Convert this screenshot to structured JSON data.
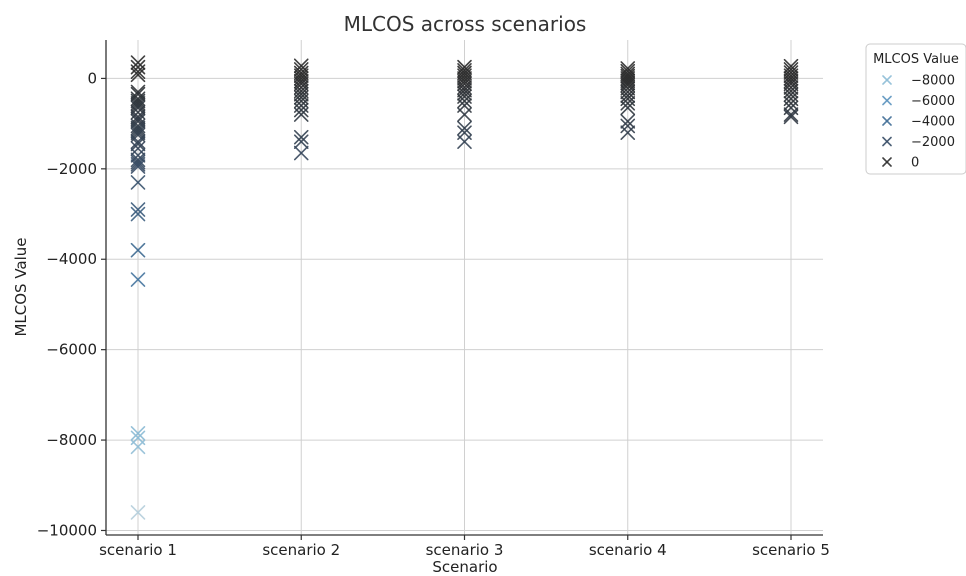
{
  "chart_data": {
    "type": "scatter",
    "title": "MLCOS across scenarios",
    "xlabel": "Scenario",
    "ylabel": "MLCOS Value",
    "categories": [
      "scenario 1",
      "scenario 2",
      "scenario 3",
      "scenario 4",
      "scenario 5"
    ],
    "ylim": [
      -10100,
      850
    ],
    "yticks": [
      0,
      -2000,
      -4000,
      -6000,
      -8000,
      -10000
    ],
    "yticklabels": [
      "0",
      "−2000",
      "−4000",
      "−6000",
      "−8000",
      "−10000"
    ],
    "grid": true,
    "marker": "x",
    "legend": {
      "title": "MLCOS Value",
      "placement": "outside-right-top",
      "entries": [
        {
          "label": "−8000",
          "value": -8000,
          "color": "#8dbcd6"
        },
        {
          "label": "−6000",
          "value": -6000,
          "color": "#5d95bf"
        },
        {
          "label": "−4000",
          "value": -4000,
          "color": "#3f6d96"
        },
        {
          "label": "−2000",
          "value": -2000,
          "color": "#394e67"
        },
        {
          "label": "0",
          "value": 0,
          "color": "#2c2c2c"
        }
      ]
    },
    "series": [
      {
        "category": "scenario 1",
        "values": [
          350,
          250,
          150,
          80,
          -300,
          -350,
          -450,
          -500,
          -550,
          -600,
          -650,
          -750,
          -850,
          -900,
          -950,
          -1050,
          -1100,
          -1150,
          -1200,
          -1250,
          -1400,
          -1450,
          -1550,
          -1700,
          -1800,
          -1850,
          -1900,
          -1950,
          -2300,
          -2900,
          -3000,
          -3800,
          -4450,
          -7850,
          -7950,
          -8150,
          -9600
        ]
      },
      {
        "category": "scenario 2",
        "values": [
          280,
          200,
          120,
          60,
          0,
          -60,
          -120,
          -200,
          -280,
          -350,
          -420,
          -500,
          -600,
          -700,
          -800,
          -1300,
          -1400,
          -1650
        ]
      },
      {
        "category": "scenario 3",
        "values": [
          250,
          180,
          120,
          60,
          0,
          -60,
          -120,
          -200,
          -260,
          -330,
          -400,
          -500,
          -600,
          -800,
          -1100,
          -1200,
          -1400
        ]
      },
      {
        "category": "scenario 4",
        "values": [
          220,
          160,
          100,
          50,
          0,
          -50,
          -100,
          -150,
          -220,
          -300,
          -380,
          -450,
          -550,
          -650,
          -950,
          -1050,
          -1200
        ]
      },
      {
        "category": "scenario 5",
        "values": [
          270,
          200,
          130,
          60,
          0,
          -60,
          -120,
          -200,
          -280,
          -360,
          -450,
          -550,
          -650,
          -800,
          -850
        ]
      }
    ]
  }
}
